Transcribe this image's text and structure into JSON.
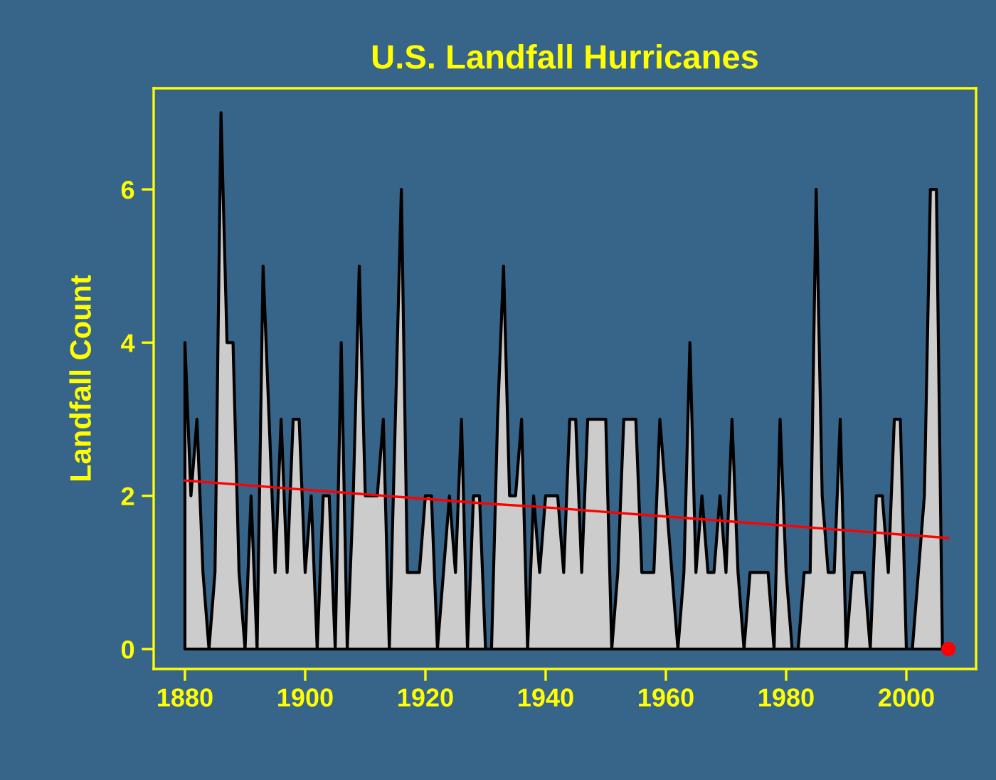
{
  "chart_data": {
    "type": "area",
    "title": "U.S. Landfall Hurricanes",
    "ylabel": "Landfall Count",
    "x": [
      1880,
      1881,
      1882,
      1883,
      1884,
      1885,
      1886,
      1887,
      1888,
      1889,
      1890,
      1891,
      1892,
      1893,
      1894,
      1895,
      1896,
      1897,
      1898,
      1899,
      1900,
      1901,
      1902,
      1903,
      1904,
      1905,
      1906,
      1907,
      1908,
      1909,
      1910,
      1911,
      1912,
      1913,
      1914,
      1915,
      1916,
      1917,
      1918,
      1919,
      1920,
      1921,
      1922,
      1923,
      1924,
      1925,
      1926,
      1927,
      1928,
      1929,
      1930,
      1931,
      1932,
      1933,
      1934,
      1935,
      1936,
      1937,
      1938,
      1939,
      1940,
      1941,
      1942,
      1943,
      1944,
      1945,
      1946,
      1947,
      1948,
      1949,
      1950,
      1951,
      1952,
      1953,
      1954,
      1955,
      1956,
      1957,
      1958,
      1959,
      1960,
      1961,
      1962,
      1963,
      1964,
      1965,
      1966,
      1967,
      1968,
      1969,
      1970,
      1971,
      1972,
      1973,
      1974,
      1975,
      1976,
      1977,
      1978,
      1979,
      1980,
      1981,
      1982,
      1983,
      1984,
      1985,
      1986,
      1987,
      1988,
      1989,
      1990,
      1991,
      1992,
      1993,
      1994,
      1995,
      1996,
      1997,
      1998,
      1999,
      2000,
      2001,
      2002,
      2003,
      2004,
      2005,
      2006,
      2007
    ],
    "series": [
      {
        "type": "area",
        "color": "#cccccc",
        "values": [
          4,
          2,
          3,
          1,
          0,
          1,
          7,
          4,
          4,
          1,
          0,
          2,
          0,
          5,
          3,
          1,
          3,
          1,
          3,
          3,
          1,
          2,
          0,
          2,
          2,
          0,
          4,
          0,
          2,
          5,
          2,
          2,
          2,
          3,
          0,
          3,
          6,
          1,
          1,
          1,
          2,
          2,
          0,
          1,
          2,
          1,
          3,
          0,
          2,
          2,
          0,
          0,
          3,
          5,
          2,
          2,
          3,
          0,
          2,
          1,
          2,
          2,
          2,
          1,
          3,
          3,
          1,
          3,
          3,
          3,
          3,
          0,
          1,
          3,
          3,
          3,
          1,
          1,
          1,
          3,
          2,
          1,
          0,
          1,
          4,
          1,
          2,
          1,
          1,
          2,
          1,
          3,
          1,
          0,
          1,
          1,
          1,
          1,
          0,
          3,
          1,
          0,
          0,
          1,
          1,
          6,
          2,
          1,
          1,
          3,
          0,
          1,
          1,
          1,
          0,
          2,
          2,
          1,
          3,
          3,
          0,
          0,
          1,
          2,
          6,
          6,
          0,
          0
        ]
      },
      {
        "type": "line",
        "color": "#ff0000",
        "x": [
          1880,
          1890,
          1900,
          1910,
          1920,
          1930,
          1940,
          1950,
          1960,
          1970,
          1980,
          1990,
          2000,
          2007
        ],
        "values": [
          2.2,
          2.14,
          2.08,
          2.02,
          1.96,
          1.9,
          1.85,
          1.79,
          1.73,
          1.67,
          1.61,
          1.55,
          1.49,
          1.45
        ]
      },
      {
        "type": "scatter",
        "color": "#ff0000",
        "x": [
          2007
        ],
        "values": [
          0
        ]
      }
    ],
    "xlim": [
      1874.8,
      2011.6
    ],
    "ylim": [
      -0.26,
      7.32
    ],
    "xticks": [
      1880,
      1900,
      1920,
      1940,
      1960,
      1980,
      2000
    ],
    "yticks": [
      0,
      2,
      4,
      6
    ],
    "grid": false,
    "legend": false
  }
}
